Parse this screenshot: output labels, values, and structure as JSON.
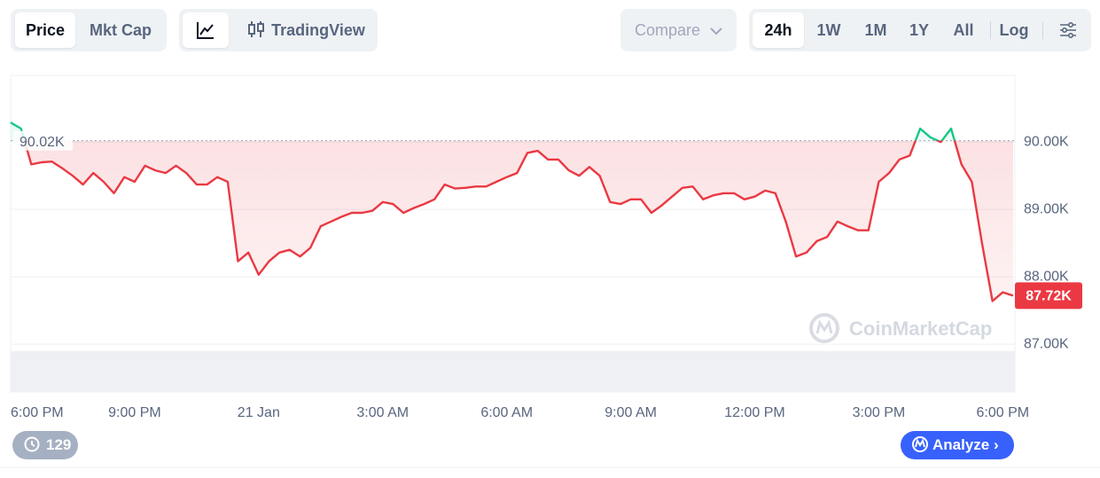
{
  "toolbar": {
    "type_tabs": [
      "Price",
      "Mkt Cap"
    ],
    "view_tab": "TradingView",
    "compare": "Compare",
    "ranges": [
      "24h",
      "1W",
      "1M",
      "1Y",
      "All"
    ],
    "log": "Log"
  },
  "history_count": 129,
  "analyze": "Analyze",
  "watermark": "CoinMarketCap",
  "chart_data": {
    "type": "line",
    "categories": [
      "6:00 PM",
      null,
      null,
      null,
      null,
      null,
      null,
      null,
      null,
      null,
      null,
      null,
      "9:00 PM",
      null,
      null,
      null,
      null,
      null,
      null,
      null,
      null,
      null,
      null,
      null,
      "21 Jan",
      null,
      null,
      null,
      null,
      null,
      null,
      null,
      null,
      null,
      null,
      null,
      "3:00 AM",
      null,
      null,
      null,
      null,
      null,
      null,
      null,
      null,
      null,
      null,
      null,
      "6:00 AM",
      null,
      null,
      null,
      null,
      null,
      null,
      null,
      null,
      null,
      null,
      null,
      "9:00 AM",
      null,
      null,
      null,
      null,
      null,
      null,
      null,
      null,
      null,
      null,
      null,
      "12:00 PM",
      null,
      null,
      null,
      null,
      null,
      null,
      null,
      null,
      null,
      null,
      null,
      "3:00 PM",
      null,
      null,
      null,
      null,
      null,
      null,
      null,
      null,
      null,
      null,
      null,
      "6:00 PM",
      null
    ],
    "values": [
      90290,
      90200,
      89670,
      89700,
      89710,
      89610,
      89500,
      89370,
      89540,
      89410,
      89240,
      89480,
      89410,
      89650,
      89580,
      89540,
      89650,
      89540,
      89370,
      89370,
      89480,
      89410,
      88230,
      88360,
      88030,
      88230,
      88360,
      88400,
      88300,
      88430,
      88750,
      88820,
      88890,
      88950,
      88950,
      88980,
      89110,
      89080,
      88950,
      89020,
      89080,
      89150,
      89370,
      89310,
      89320,
      89340,
      89340,
      89410,
      89480,
      89540,
      89840,
      89870,
      89740,
      89740,
      89580,
      89500,
      89630,
      89500,
      89110,
      89080,
      89150,
      89150,
      88950,
      89060,
      89190,
      89320,
      89340,
      89150,
      89210,
      89240,
      89240,
      89150,
      89190,
      89280,
      89240,
      88820,
      88300,
      88360,
      88530,
      88590,
      88820,
      88750,
      88690,
      88690,
      89410,
      89540,
      89740,
      89800,
      90200,
      90070,
      90000,
      90200,
      89670,
      89410,
      88490,
      87640,
      87770,
      87720
    ],
    "current_label": "87.72K",
    "baseline": {
      "value": 90020,
      "label": "90.02K"
    },
    "up_color": "#16c784",
    "down_color": "#ea3943",
    "ylim": [
      86290,
      90990
    ],
    "yticks": [
      {
        "value": 87000,
        "label": "87.00K"
      },
      {
        "value": 88000,
        "label": "88.00K"
      },
      {
        "value": 89000,
        "label": "89.00K"
      },
      {
        "value": 90000,
        "label": "90.00K"
      }
    ],
    "grid": true
  }
}
